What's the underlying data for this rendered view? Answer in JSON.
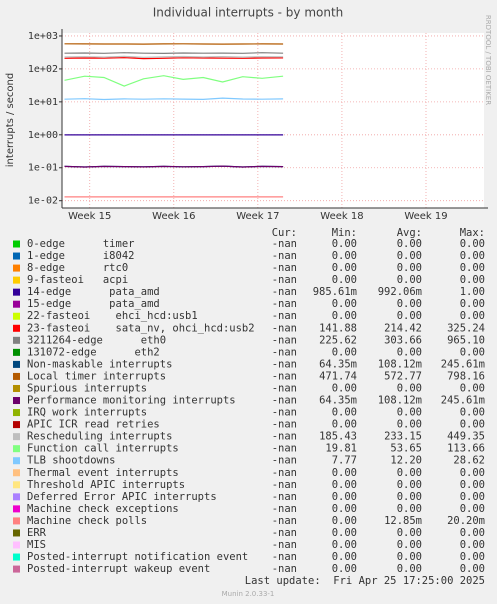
{
  "chart_data": {
    "type": "line",
    "title": "Individual interrupts - by month",
    "ylabel": "interrupts / second",
    "side_label": "RRDTOOL / TOBI OETIKER",
    "footer": "Last update:  Fri Apr 25 17:25:00 2025",
    "version": "Munin 2.0.33-1",
    "log_scale": true,
    "grid": true,
    "ylim": [
      0.006,
      1230
    ],
    "yticks": [
      {
        "value": 0.01,
        "label": "1e-02"
      },
      {
        "value": 0.1,
        "label": "1e-01"
      },
      {
        "value": 1,
        "label": "1e+00"
      },
      {
        "value": 10,
        "label": "1e+01"
      },
      {
        "value": 100,
        "label": "1e+02"
      },
      {
        "value": 1000,
        "label": "1e+03"
      }
    ],
    "xlim": [
      14.67,
      19.69
    ],
    "xticks": [
      {
        "value": 15,
        "label": "Week 15"
      },
      {
        "value": 16,
        "label": "Week 16"
      },
      {
        "value": 17,
        "label": "Week 17"
      },
      {
        "value": 18,
        "label": "Week 18"
      },
      {
        "value": 19,
        "label": "Week 19"
      }
    ],
    "columns": [
      "Cur:",
      "Min:",
      "Avg:",
      "Max:"
    ],
    "x": [
      14.7,
      14.94,
      15.17,
      15.41,
      15.64,
      15.88,
      16.11,
      16.35,
      16.58,
      16.82,
      17.05,
      17.3
    ],
    "series": [
      {
        "name": "0-edge      timer",
        "color": "#00cc00",
        "values": [
          0,
          0,
          0,
          0,
          0,
          0,
          0,
          0,
          0,
          0,
          0,
          0
        ],
        "cur": "-nan",
        "min": "0.00",
        "avg": "0.00",
        "max": "0.00"
      },
      {
        "name": "1-edge      i8042",
        "color": "#0066b3",
        "values": [
          0,
          0,
          0,
          0,
          0,
          0,
          0,
          0,
          0,
          0,
          0,
          0
        ],
        "cur": "-nan",
        "min": "0.00",
        "avg": "0.00",
        "max": "0.00"
      },
      {
        "name": "8-edge      rtc0",
        "color": "#ff8000",
        "values": [
          0,
          0,
          0,
          0,
          0,
          0,
          0,
          0,
          0,
          0,
          0,
          0
        ],
        "cur": "-nan",
        "min": "0.00",
        "avg": "0.00",
        "max": "0.00"
      },
      {
        "name": "9-fasteoi   acpi",
        "color": "#ffcc00",
        "values": [
          0,
          0,
          0,
          0,
          0,
          0,
          0,
          0,
          0,
          0,
          0,
          0
        ],
        "cur": "-nan",
        "min": "0.00",
        "avg": "0.00",
        "max": "0.00"
      },
      {
        "name": "14-edge      pata_amd",
        "color": "#330099",
        "values": [
          0.99,
          0.99,
          0.99,
          0.99,
          0.99,
          0.99,
          0.99,
          0.99,
          0.99,
          0.99,
          0.99,
          0.99
        ],
        "cur": "-nan",
        "min": "985.61m",
        "avg": "992.06m",
        "max": "1.00"
      },
      {
        "name": "15-edge      pata_amd",
        "color": "#990099",
        "values": [
          0,
          0,
          0,
          0,
          0,
          0,
          0,
          0,
          0,
          0,
          0,
          0
        ],
        "cur": "-nan",
        "min": "0.00",
        "avg": "0.00",
        "max": "0.00"
      },
      {
        "name": "22-fasteoi    ehci_hcd:usb1",
        "color": "#ccff00",
        "values": [
          0,
          0,
          0,
          0,
          0,
          0,
          0,
          0,
          0,
          0,
          0,
          0
        ],
        "cur": "-nan",
        "min": "0.00",
        "avg": "0.00",
        "max": "0.00"
      },
      {
        "name": "23-fasteoi    sata_nv, ohci_hcd:usb2",
        "color": "#ff0000",
        "values": [
          210,
          215,
          212,
          220,
          205,
          210,
          218,
          215,
          212,
          210,
          214,
          216
        ],
        "cur": "-nan",
        "min": "141.88",
        "avg": "214.42",
        "max": "325.24"
      },
      {
        "name": "3211264-edge      eth0",
        "color": "#808080",
        "values": [
          300,
          305,
          298,
          310,
          300,
          295,
          305,
          300,
          302,
          298,
          310,
          300
        ],
        "cur": "-nan",
        "min": "225.62",
        "avg": "303.66",
        "max": "965.10"
      },
      {
        "name": "131072-edge      eth2",
        "color": "#008f00",
        "values": [
          0,
          0,
          0,
          0,
          0,
          0,
          0,
          0,
          0,
          0,
          0,
          0
        ],
        "cur": "-nan",
        "min": "0.00",
        "avg": "0.00",
        "max": "0.00"
      },
      {
        "name": "Non-maskable interrupts",
        "color": "#00487d",
        "values": [
          0.11,
          0.105,
          0.11,
          0.108,
          0.106,
          0.11,
          0.107,
          0.108,
          0.112,
          0.105,
          0.11,
          0.108
        ],
        "cur": "-nan",
        "min": "64.35m",
        "avg": "108.12m",
        "max": "245.61m"
      },
      {
        "name": "Local timer interrupts",
        "color": "#b35a00",
        "values": [
          580,
          575,
          570,
          572,
          568,
          575,
          580,
          570,
          565,
          572,
          575,
          570
        ],
        "cur": "-nan",
        "min": "471.74",
        "avg": "572.77",
        "max": "798.16"
      },
      {
        "name": "Spurious interrupts",
        "color": "#b38f00",
        "values": [
          0,
          0,
          0,
          0,
          0,
          0,
          0,
          0,
          0,
          0,
          0,
          0
        ],
        "cur": "-nan",
        "min": "0.00",
        "avg": "0.00",
        "max": "0.00"
      },
      {
        "name": "Performance monitoring interrupts",
        "color": "#6b006b",
        "values": [
          0.11,
          0.105,
          0.11,
          0.108,
          0.106,
          0.11,
          0.107,
          0.108,
          0.112,
          0.105,
          0.11,
          0.108
        ],
        "cur": "-nan",
        "min": "64.35m",
        "avg": "108.12m",
        "max": "245.61m"
      },
      {
        "name": "IRQ work interrupts",
        "color": "#8fb300",
        "values": [
          0,
          0,
          0,
          0,
          0,
          0,
          0,
          0,
          0,
          0,
          0,
          0
        ],
        "cur": "-nan",
        "min": "0.00",
        "avg": "0.00",
        "max": "0.00"
      },
      {
        "name": "APIC ICR read retries",
        "color": "#b30000",
        "values": [
          0,
          0,
          0,
          0,
          0,
          0,
          0,
          0,
          0,
          0,
          0,
          0
        ],
        "cur": "-nan",
        "min": "0.00",
        "avg": "0.00",
        "max": "0.00"
      },
      {
        "name": "Rescheduling interrupts",
        "color": "#bebebe",
        "values": [
          230,
          235,
          228,
          240,
          225,
          232,
          238,
          230,
          236,
          229,
          234,
          231
        ],
        "cur": "-nan",
        "min": "185.43",
        "avg": "233.15",
        "max": "449.35"
      },
      {
        "name": "Function call interrupts",
        "color": "#80ff80",
        "values": [
          45,
          60,
          55,
          30,
          50,
          62,
          48,
          55,
          40,
          58,
          52,
          60
        ],
        "cur": "-nan",
        "min": "19.81",
        "avg": "53.65",
        "max": "113.66"
      },
      {
        "name": "TLB shootdowns",
        "color": "#80c9ff",
        "values": [
          12,
          12.5,
          11.8,
          12.3,
          12,
          12.4,
          12.1,
          11.9,
          13,
          12.2,
          12,
          12.3
        ],
        "cur": "-nan",
        "min": "7.77",
        "avg": "12.20",
        "max": "28.62"
      },
      {
        "name": "Thermal event interrupts",
        "color": "#ffc080",
        "values": [
          0,
          0,
          0,
          0,
          0,
          0,
          0,
          0,
          0,
          0,
          0,
          0
        ],
        "cur": "-nan",
        "min": "0.00",
        "avg": "0.00",
        "max": "0.00"
      },
      {
        "name": "Threshold APIC interrupts",
        "color": "#ffe680",
        "values": [
          0,
          0,
          0,
          0,
          0,
          0,
          0,
          0,
          0,
          0,
          0,
          0
        ],
        "cur": "-nan",
        "min": "0.00",
        "avg": "0.00",
        "max": "0.00"
      },
      {
        "name": "Deferred Error APIC interrupts",
        "color": "#aa80ff",
        "values": [
          0,
          0,
          0,
          0,
          0,
          0,
          0,
          0,
          0,
          0,
          0,
          0
        ],
        "cur": "-nan",
        "min": "0.00",
        "avg": "0.00",
        "max": "0.00"
      },
      {
        "name": "Machine check exceptions",
        "color": "#ee00cc",
        "values": [
          0,
          0,
          0,
          0,
          0,
          0,
          0,
          0,
          0,
          0,
          0,
          0
        ],
        "cur": "-nan",
        "min": "0.00",
        "avg": "0.00",
        "max": "0.00"
      },
      {
        "name": "Machine check polls",
        "color": "#ff8080",
        "values": [
          0.013,
          0.013,
          0.013,
          0.013,
          0.013,
          0.013,
          0.013,
          0.013,
          0.013,
          0.013,
          0.013,
          0.013
        ],
        "cur": "-nan",
        "min": "0.00",
        "avg": "12.85m",
        "max": "20.20m"
      },
      {
        "name": "ERR",
        "color": "#666600",
        "values": [
          0,
          0,
          0,
          0,
          0,
          0,
          0,
          0,
          0,
          0,
          0,
          0
        ],
        "cur": "-nan",
        "min": "0.00",
        "avg": "0.00",
        "max": "0.00"
      },
      {
        "name": "MIS",
        "color": "#ffbfff",
        "values": [
          0,
          0,
          0,
          0,
          0,
          0,
          0,
          0,
          0,
          0,
          0,
          0
        ],
        "cur": "-nan",
        "min": "0.00",
        "avg": "0.00",
        "max": "0.00"
      },
      {
        "name": "Posted-interrupt notification event",
        "color": "#00ffcc",
        "values": [
          0,
          0,
          0,
          0,
          0,
          0,
          0,
          0,
          0,
          0,
          0,
          0
        ],
        "cur": "-nan",
        "min": "0.00",
        "avg": "0.00",
        "max": "0.00"
      },
      {
        "name": "Posted-interrupt wakeup event",
        "color": "#cc6699",
        "values": [
          0,
          0,
          0,
          0,
          0,
          0,
          0,
          0,
          0,
          0,
          0,
          0
        ],
        "cur": "-nan",
        "min": "0.00",
        "avg": "0.00",
        "max": "0.00"
      }
    ]
  }
}
